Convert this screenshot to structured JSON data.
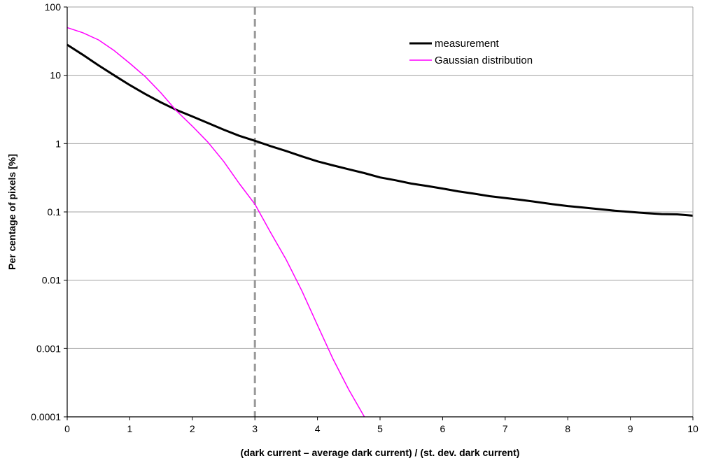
{
  "chart_data": {
    "type": "line",
    "title": "",
    "xlabel": "(dark current – average dark current) / (st. dev. dark current)",
    "ylabel": "Per centage of pixels  [%]",
    "xlim": [
      0,
      10
    ],
    "ylim": [
      0.0001,
      100
    ],
    "y_scale": "log",
    "x_ticks": [
      0,
      1,
      2,
      3,
      4,
      5,
      6,
      7,
      8,
      9,
      10
    ],
    "x_tick_labels": [
      "0",
      "1",
      "2",
      "3",
      "4",
      "5",
      "6",
      "7",
      "8",
      "9",
      "10"
    ],
    "y_ticks": [
      0.0001,
      0.001,
      0.01,
      0.1,
      1,
      10,
      100
    ],
    "y_tick_labels": [
      "0.0001",
      "0.001",
      "0.01",
      "0.1",
      "1",
      "10",
      "100"
    ],
    "grid": "horizontal",
    "legend": "top-right",
    "reference_line": {
      "x": 3,
      "style": "dashed",
      "color": "#999999"
    },
    "series": [
      {
        "name": "measurement",
        "color": "#000000",
        "x": [
          0,
          0.25,
          0.5,
          0.75,
          1.0,
          1.25,
          1.5,
          1.75,
          2.0,
          2.25,
          2.5,
          2.75,
          3.0,
          3.25,
          3.5,
          3.75,
          4.0,
          4.25,
          4.5,
          4.75,
          5.0,
          5.25,
          5.5,
          5.75,
          6.0,
          6.25,
          6.5,
          6.75,
          7.0,
          7.25,
          7.5,
          7.75,
          8.0,
          8.25,
          8.5,
          8.75,
          9.0,
          9.25,
          9.5,
          9.75,
          10.0
        ],
        "y": [
          28,
          20,
          14,
          10,
          7.2,
          5.3,
          4.0,
          3.1,
          2.5,
          2.0,
          1.6,
          1.3,
          1.1,
          0.92,
          0.78,
          0.65,
          0.55,
          0.48,
          0.42,
          0.37,
          0.32,
          0.29,
          0.26,
          0.24,
          0.22,
          0.2,
          0.185,
          0.17,
          0.16,
          0.15,
          0.14,
          0.13,
          0.122,
          0.116,
          0.11,
          0.104,
          0.1,
          0.096,
          0.093,
          0.092,
          0.088
        ]
      },
      {
        "name": "Gaussian distribution",
        "color": "#ff00ff",
        "x": [
          0,
          0.25,
          0.5,
          0.75,
          1.0,
          1.25,
          1.5,
          1.75,
          2.0,
          2.25,
          2.5,
          2.75,
          3.0,
          3.25,
          3.5,
          3.75,
          4.0,
          4.25,
          4.5,
          4.75
        ],
        "y": [
          50,
          42,
          33,
          23,
          15,
          9.5,
          5.5,
          3.0,
          1.8,
          1.05,
          0.55,
          0.26,
          0.13,
          0.05,
          0.02,
          0.007,
          0.0022,
          0.0007,
          0.00025,
          0.0001
        ]
      }
    ]
  }
}
